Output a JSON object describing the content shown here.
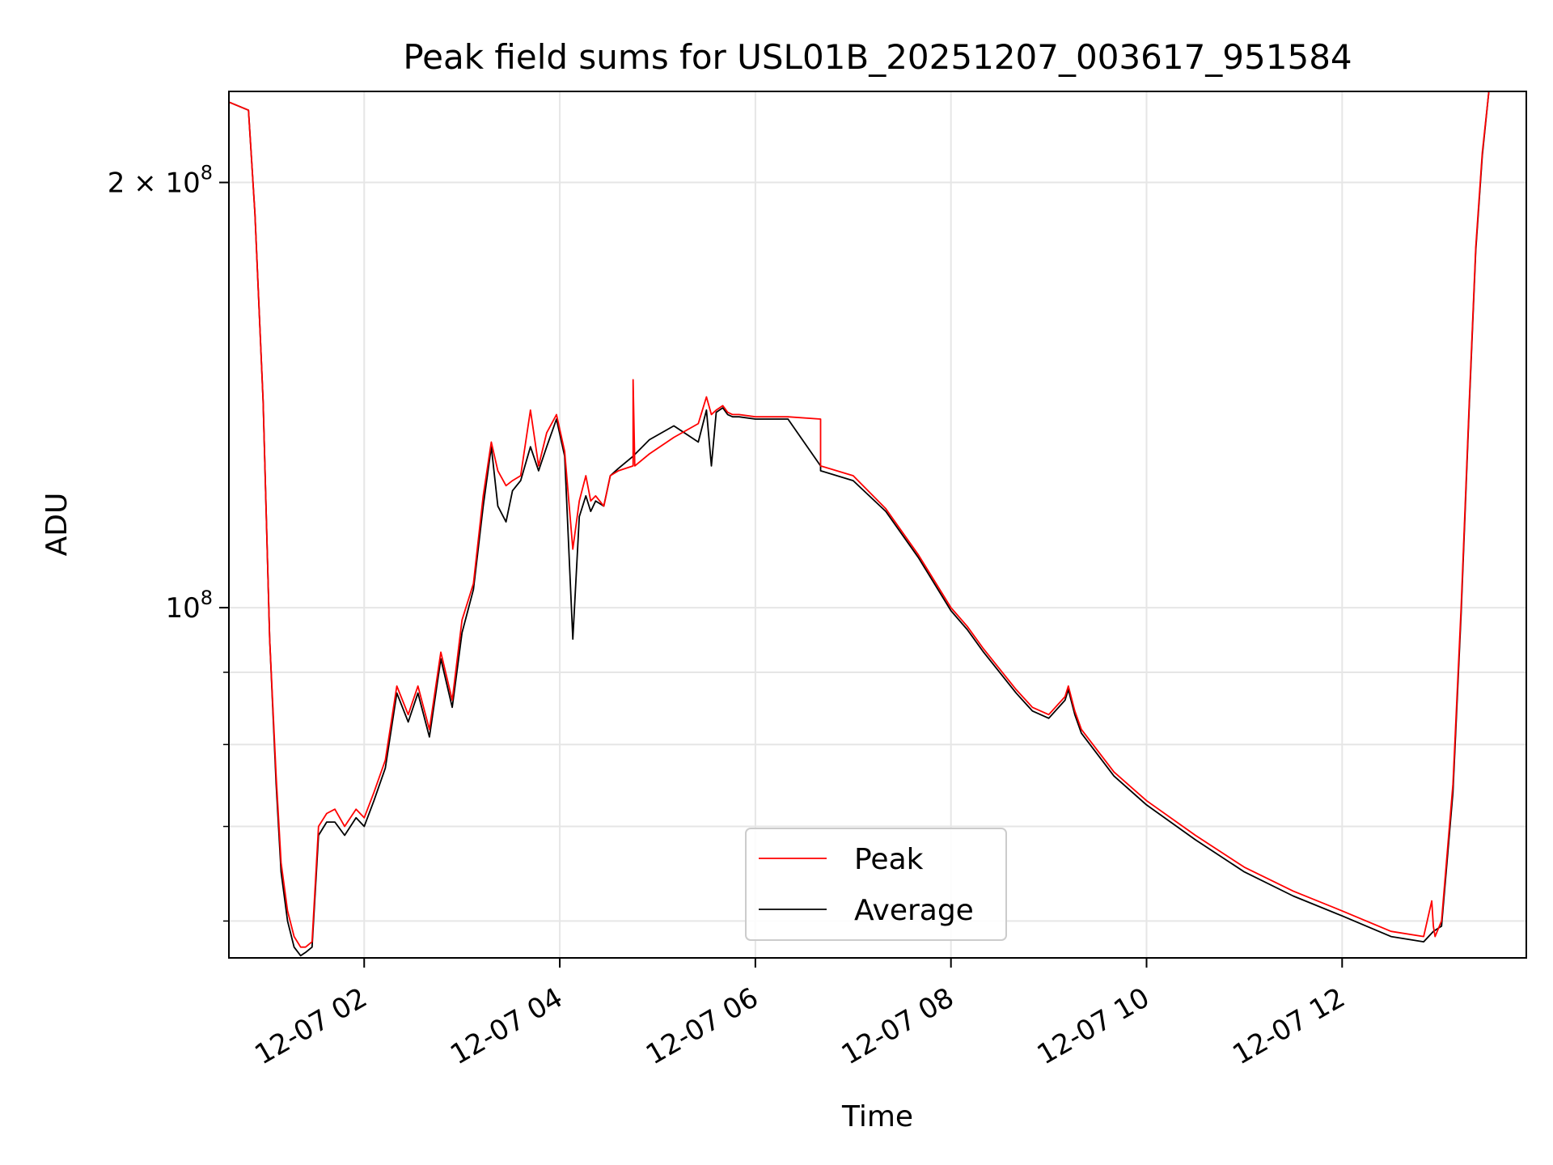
{
  "chart_data": {
    "type": "line",
    "title": "Peak field sums for USL01B_20251207_003617_951584",
    "xlabel": "Time",
    "ylabel": "ADU",
    "y_scale": "log",
    "xlim": [
      "2025-12-07 00:37",
      "2025-12-07 13:53"
    ],
    "ylim": [
      56500000.0,
      232000000.0
    ],
    "x_ticks": [
      "2025-12-07 02:00",
      "2025-12-07 04:00",
      "2025-12-07 06:00",
      "2025-12-07 08:00",
      "2025-12-07 10:00",
      "2025-12-07 12:00"
    ],
    "x_tick_labels": [
      "12-07 02",
      "12-07 04",
      "12-07 06",
      "12-07 08",
      "12-07 10",
      "12-07 12"
    ],
    "y_ticks": [
      200000000,
      100000000
    ],
    "y_tick_labels": [
      [
        "2",
        "×",
        "10",
        "8"
      ],
      [
        "",
        "",
        "10",
        "8"
      ]
    ],
    "y_minor_ticks": [
      60000000,
      70000000,
      80000000,
      90000000
    ],
    "grid": true,
    "legend_position": "lower center",
    "series": [
      {
        "name": "Peak",
        "color": "#ff0000",
        "x": [
          "2025-12-07 00:37",
          "2025-12-07 00:49",
          "2025-12-07 00:53",
          "2025-12-07 00:58",
          "2025-12-07 01:02",
          "2025-12-07 01:06",
          "2025-12-07 01:09",
          "2025-12-07 01:13",
          "2025-12-07 01:17",
          "2025-12-07 01:21",
          "2025-12-07 01:24",
          "2025-12-07 01:28",
          "2025-12-07 01:32",
          "2025-12-07 01:37",
          "2025-12-07 01:42",
          "2025-12-07 01:48",
          "2025-12-07 01:55",
          "2025-12-07 02:00",
          "2025-12-07 02:06",
          "2025-12-07 02:13",
          "2025-12-07 02:20",
          "2025-12-07 02:27",
          "2025-12-07 02:33",
          "2025-12-07 02:40",
          "2025-12-07 02:47",
          "2025-12-07 02:54",
          "2025-12-07 03:00",
          "2025-12-07 03:07",
          "2025-12-07 03:13",
          "2025-12-07 03:18",
          "2025-12-07 03:22",
          "2025-12-07 03:27",
          "2025-12-07 03:31",
          "2025-12-07 03:36",
          "2025-12-07 03:42",
          "2025-12-07 03:47",
          "2025-12-07 03:52",
          "2025-12-07 03:58",
          "2025-12-07 04:03",
          "2025-12-07 04:08",
          "2025-12-07 04:12",
          "2025-12-07 04:16",
          "2025-12-07 04:19",
          "2025-12-07 04:22",
          "2025-12-07 04:27",
          "2025-12-07 04:31",
          "2025-12-07 04:36",
          "2025-12-07 04:45",
          "2025-12-07 04:45",
          "2025-12-07 04:46",
          "2025-12-07 04:55",
          "2025-12-07 05:10",
          "2025-12-07 05:25",
          "2025-12-07 05:30",
          "2025-12-07 05:33",
          "2025-12-07 05:36",
          "2025-12-07 05:40",
          "2025-12-07 05:43",
          "2025-12-07 05:46",
          "2025-12-07 05:50",
          "2025-12-07 06:00",
          "2025-12-07 06:20",
          "2025-12-07 06:40",
          "2025-12-07 06:40",
          "2025-12-07 07:00",
          "2025-12-07 07:20",
          "2025-12-07 07:40",
          "2025-12-07 08:00",
          "2025-12-07 08:10",
          "2025-12-07 08:20",
          "2025-12-07 08:40",
          "2025-12-07 08:50",
          "2025-12-07 09:00",
          "2025-12-07 09:10",
          "2025-12-07 09:12",
          "2025-12-07 09:16",
          "2025-12-07 09:20",
          "2025-12-07 09:40",
          "2025-12-07 10:00",
          "2025-12-07 10:30",
          "2025-12-07 11:00",
          "2025-12-07 11:30",
          "2025-12-07 12:00",
          "2025-12-07 12:30",
          "2025-12-07 12:50",
          "2025-12-07 12:55",
          "2025-12-07 12:56",
          "2025-12-07 12:57",
          "2025-12-07 13:01",
          "2025-12-07 13:08",
          "2025-12-07 13:13",
          "2025-12-07 13:18",
          "2025-12-07 13:22",
          "2025-12-07 13:26",
          "2025-12-07 13:30",
          "2025-12-07 13:35",
          "2025-12-07 13:40",
          "2025-12-07 13:45",
          "2025-12-07 13:53"
        ],
        "y": [
          228000000,
          225000000,
          190000000,
          140000000,
          95000000,
          76000000,
          66000000,
          61000000,
          58500000,
          57500000,
          57500000,
          58000000,
          70000000,
          71500000,
          72000000,
          70000000,
          72000000,
          71000000,
          74000000,
          78000000,
          88000000,
          84000000,
          88000000,
          82000000,
          93000000,
          86000000,
          98000000,
          104000000,
          120000000,
          131000000,
          125000000,
          122000000,
          123000000,
          124000000,
          138000000,
          126000000,
          133000000,
          137000000,
          129000000,
          110000000,
          119000000,
          124000000,
          119000000,
          120000000,
          118000000,
          124000000,
          125000000,
          126000000,
          145000000,
          126000000,
          128500000,
          132000000,
          135000000,
          141000000,
          137000000,
          138000000,
          139000000,
          137500000,
          137000000,
          137000000,
          136500000,
          136500000,
          136000000,
          126000000,
          124000000,
          117500000,
          109000000,
          100000000,
          97000000,
          93500000,
          87500000,
          85000000,
          84000000,
          86500000,
          88000000,
          84500000,
          82000000,
          76500000,
          73000000,
          69000000,
          65500000,
          63000000,
          61000000,
          59000000,
          58500000,
          62000000,
          59500000,
          58500000,
          60000000,
          75000000,
          100000000,
          140000000,
          180000000,
          210000000,
          232000000,
          232000000,
          232000000,
          232000000,
          232000000
        ]
      },
      {
        "name": "Average",
        "color": "#000000",
        "x": [
          "2025-12-07 00:37",
          "2025-12-07 00:49",
          "2025-12-07 00:53",
          "2025-12-07 00:58",
          "2025-12-07 01:02",
          "2025-12-07 01:06",
          "2025-12-07 01:09",
          "2025-12-07 01:13",
          "2025-12-07 01:17",
          "2025-12-07 01:21",
          "2025-12-07 01:24",
          "2025-12-07 01:28",
          "2025-12-07 01:32",
          "2025-12-07 01:37",
          "2025-12-07 01:42",
          "2025-12-07 01:48",
          "2025-12-07 01:55",
          "2025-12-07 02:00",
          "2025-12-07 02:06",
          "2025-12-07 02:13",
          "2025-12-07 02:20",
          "2025-12-07 02:27",
          "2025-12-07 02:33",
          "2025-12-07 02:40",
          "2025-12-07 02:47",
          "2025-12-07 02:54",
          "2025-12-07 03:00",
          "2025-12-07 03:07",
          "2025-12-07 03:13",
          "2025-12-07 03:18",
          "2025-12-07 03:22",
          "2025-12-07 03:27",
          "2025-12-07 03:31",
          "2025-12-07 03:36",
          "2025-12-07 03:42",
          "2025-12-07 03:47",
          "2025-12-07 03:52",
          "2025-12-07 03:58",
          "2025-12-07 04:03",
          "2025-12-07 04:08",
          "2025-12-07 04:12",
          "2025-12-07 04:16",
          "2025-12-07 04:19",
          "2025-12-07 04:22",
          "2025-12-07 04:27",
          "2025-12-07 04:31",
          "2025-12-07 04:36",
          "2025-12-07 04:45",
          "2025-12-07 04:55",
          "2025-12-07 05:10",
          "2025-12-07 05:25",
          "2025-12-07 05:30",
          "2025-12-07 05:33",
          "2025-12-07 05:36",
          "2025-12-07 05:40",
          "2025-12-07 05:43",
          "2025-12-07 05:46",
          "2025-12-07 05:50",
          "2025-12-07 06:00",
          "2025-12-07 06:20",
          "2025-12-07 06:40",
          "2025-12-07 06:40",
          "2025-12-07 07:00",
          "2025-12-07 07:20",
          "2025-12-07 07:40",
          "2025-12-07 08:00",
          "2025-12-07 08:10",
          "2025-12-07 08:20",
          "2025-12-07 08:40",
          "2025-12-07 08:50",
          "2025-12-07 09:00",
          "2025-12-07 09:10",
          "2025-12-07 09:12",
          "2025-12-07 09:16",
          "2025-12-07 09:20",
          "2025-12-07 09:40",
          "2025-12-07 10:00",
          "2025-12-07 10:30",
          "2025-12-07 11:00",
          "2025-12-07 11:30",
          "2025-12-07 12:00",
          "2025-12-07 12:30",
          "2025-12-07 12:50",
          "2025-12-07 12:56",
          "2025-12-07 13:01",
          "2025-12-07 13:08",
          "2025-12-07 13:13",
          "2025-12-07 13:18",
          "2025-12-07 13:22",
          "2025-12-07 13:26",
          "2025-12-07 13:30",
          "2025-12-07 13:35",
          "2025-12-07 13:40",
          "2025-12-07 13:45",
          "2025-12-07 13:53"
        ],
        "y": [
          228000000,
          225000000,
          190000000,
          140000000,
          95000000,
          75000000,
          65000000,
          60000000,
          57500000,
          56700000,
          57000000,
          57500000,
          69000000,
          70500000,
          70500000,
          69000000,
          71000000,
          70000000,
          73000000,
          77000000,
          87000000,
          83000000,
          87000000,
          81000000,
          92000000,
          85000000,
          96000000,
          103000000,
          118000000,
          130000000,
          118000000,
          115000000,
          121000000,
          123000000,
          130000000,
          125000000,
          130000000,
          136000000,
          128000000,
          95000000,
          116000000,
          120000000,
          117000000,
          119000000,
          118000000,
          124000000,
          125500000,
          128000000,
          131500000,
          134500000,
          131000000,
          138000000,
          126000000,
          137500000,
          138500000,
          137000000,
          136500000,
          136500000,
          136000000,
          136000000,
          126000000,
          125000000,
          123000000,
          117000000,
          108500000,
          99500000,
          96500000,
          93000000,
          87000000,
          84500000,
          83500000,
          86000000,
          87500000,
          84000000,
          81500000,
          76000000,
          72500000,
          68500000,
          65000000,
          62500000,
          60500000,
          58500000,
          58000000,
          59000000,
          59500000,
          74000000,
          99000000,
          139000000,
          179000000,
          209000000,
          232000000,
          232000000,
          232000000,
          232000000,
          232000000
        ]
      }
    ]
  }
}
